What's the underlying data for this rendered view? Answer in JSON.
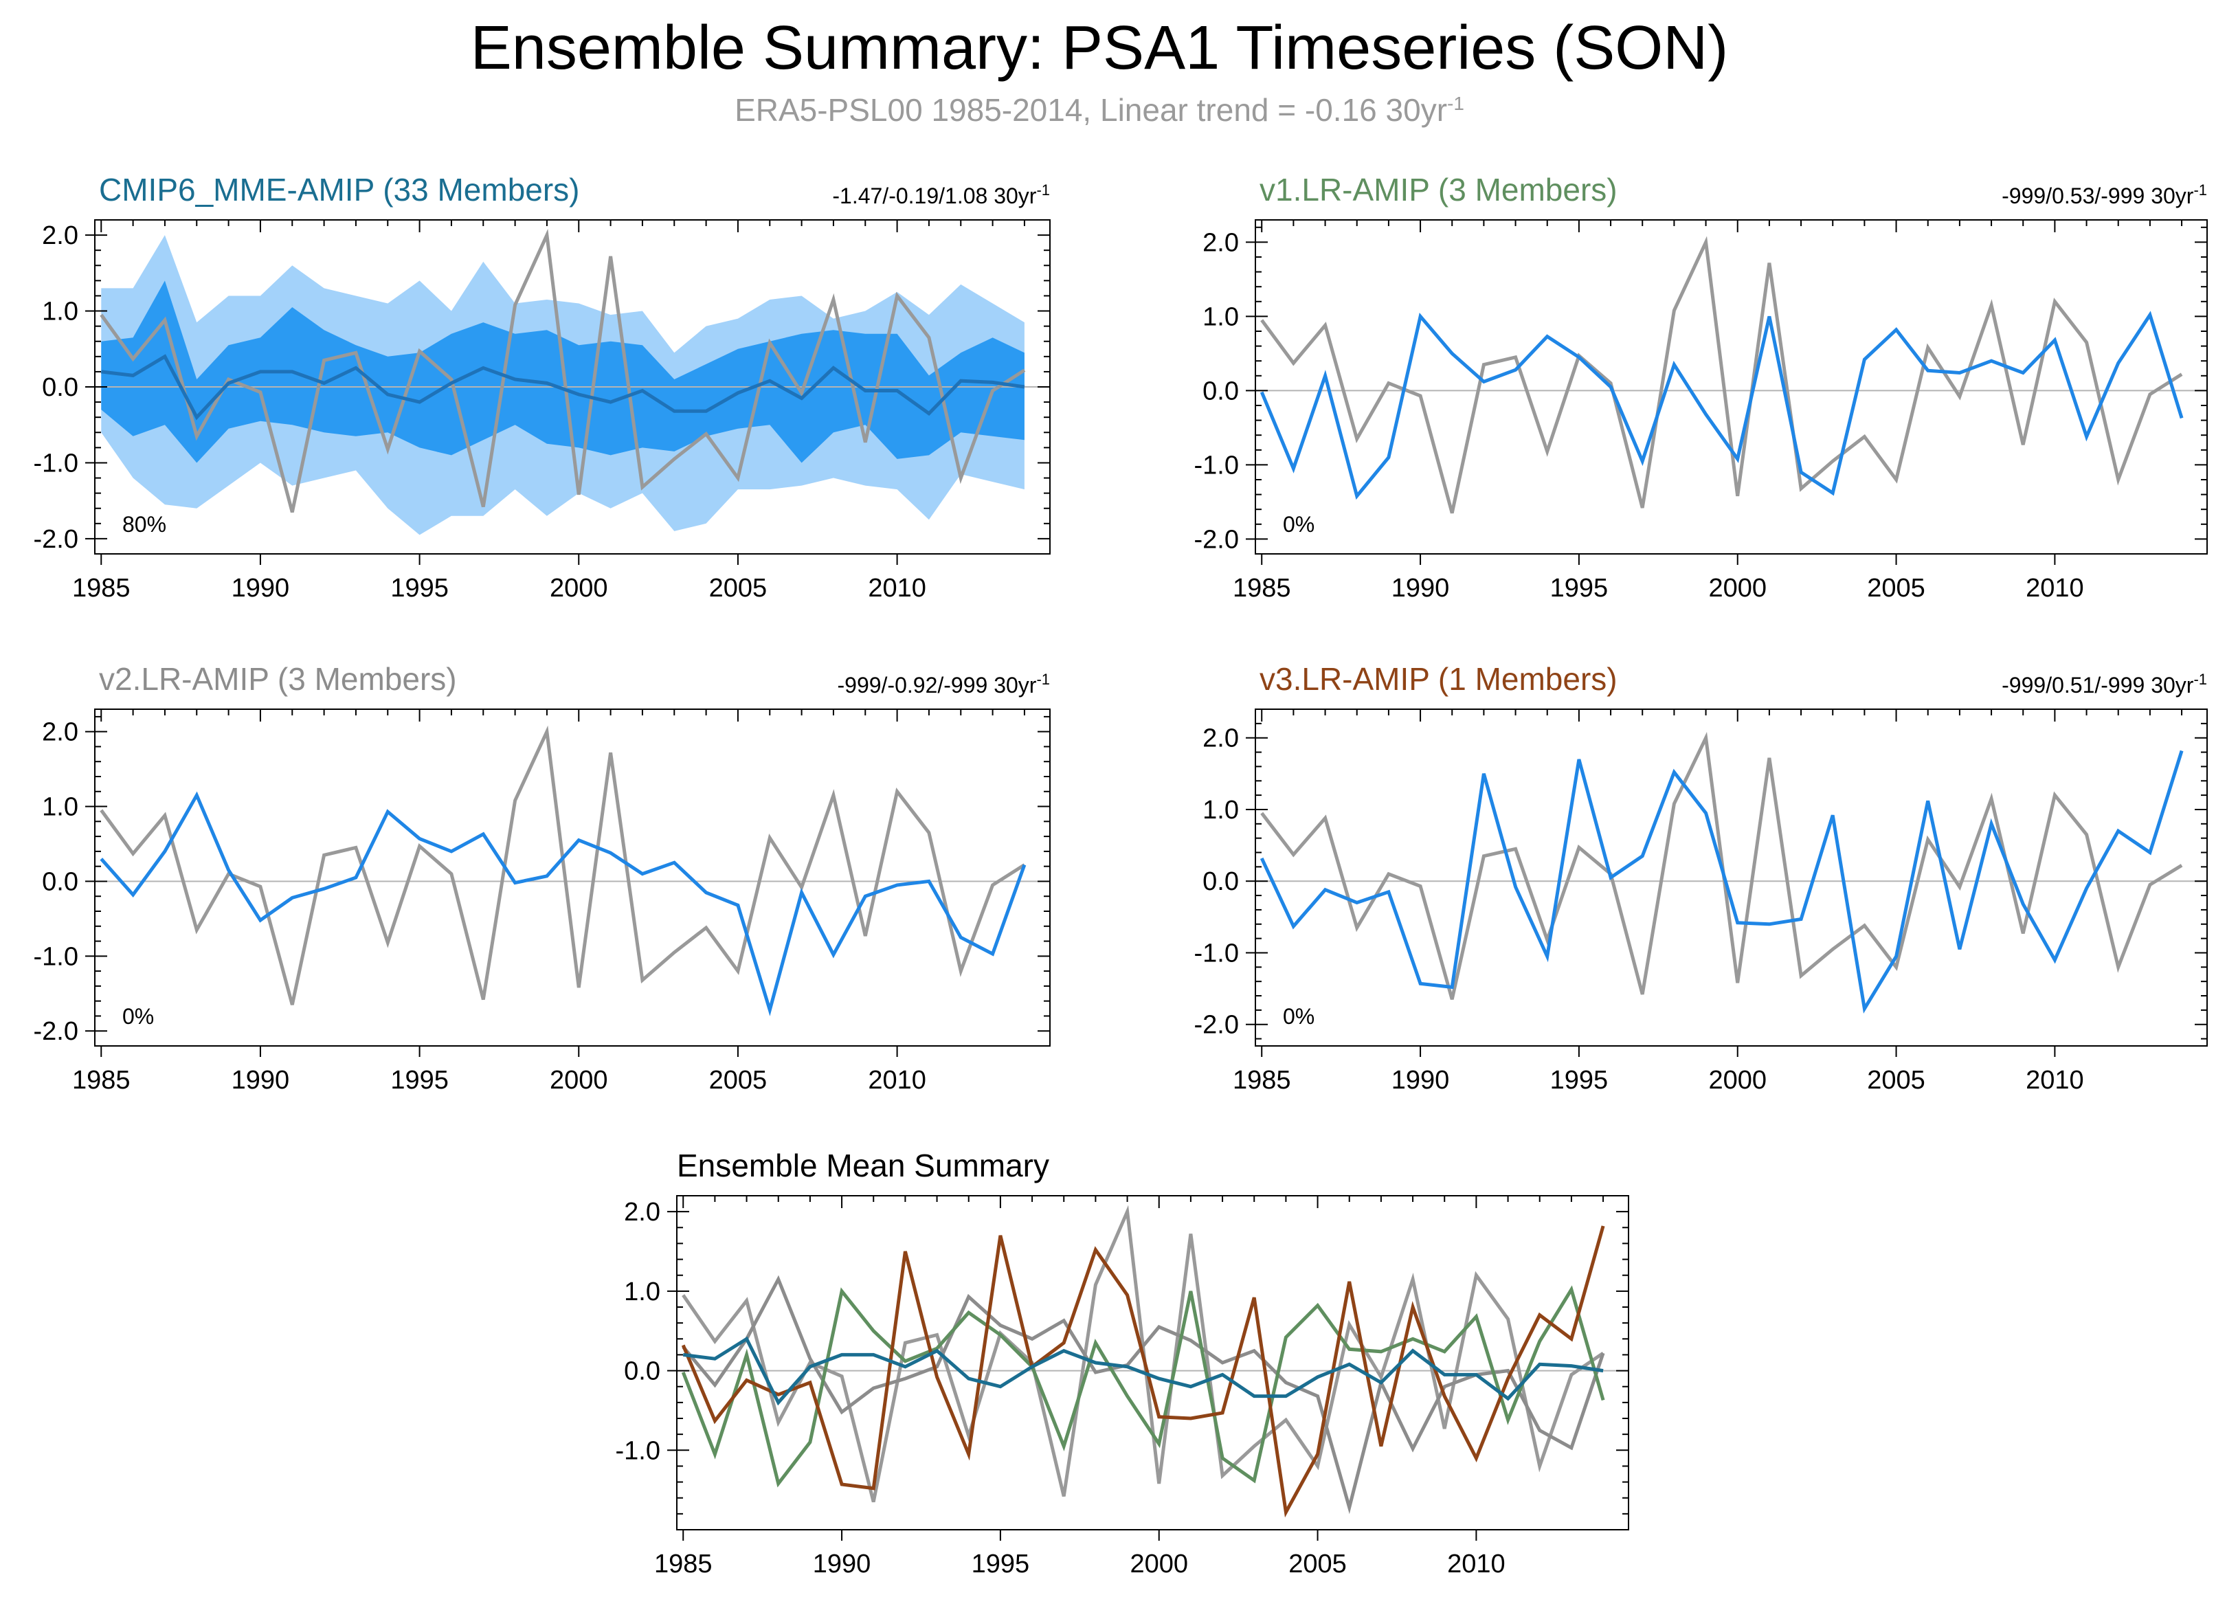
{
  "header": {
    "title": "Ensemble Summary: PSA1 Timeseries (SON)",
    "subtitle": "ERA5-PSL00 1985-2014, Linear trend = -0.16 30yr",
    "subtitle_sup": "-1"
  },
  "colors": {
    "observation": "#999999",
    "mme_mean": "#1e72b8",
    "mme_inner_band": "#2b9af2",
    "mme_outer_band": "#a3d2fa",
    "member_line": "#1f86e6",
    "zero_line": "#b4b4b4",
    "panel_mme": "#1a6e91",
    "panel_v1": "#5f8f5f",
    "panel_v2": "#8c8c8c",
    "panel_v3": "#8f4316"
  },
  "chart_data": [
    {
      "id": "mme",
      "type": "line",
      "title": "CMIP6_MME-AMIP (33 Members)",
      "title_color": "#1a6e91",
      "trend_text": "-1.47/-0.19/1.08 30yr",
      "trend_sup": "-1",
      "percent_label": "80%",
      "xlabel": "",
      "ylabel": "",
      "xlim": [
        1984.8,
        2014.8
      ],
      "ylim": [
        -2.2,
        2.2
      ],
      "xticks": [
        1985,
        1990,
        1995,
        2000,
        2005,
        2010
      ],
      "xtick_labels": [
        "1985",
        "1990",
        "1995",
        "2000",
        "2005",
        "2010"
      ],
      "yticks": [
        -2,
        -1,
        0,
        1,
        2
      ],
      "ytick_labels": [
        "-2.0",
        "-1.0",
        "0.0",
        "1.0",
        "2.0"
      ],
      "x": [
        1985,
        1986,
        1987,
        1988,
        1989,
        1990,
        1991,
        1992,
        1993,
        1994,
        1995,
        1996,
        1997,
        1998,
        1999,
        2000,
        2001,
        2002,
        2003,
        2004,
        2005,
        2006,
        2007,
        2008,
        2009,
        2010,
        2011,
        2012,
        2013,
        2014
      ],
      "bands": [
        {
          "name": "outer range",
          "color": "#a3d2fa",
          "upper": [
            1.3,
            1.3,
            2.0,
            0.85,
            1.2,
            1.2,
            1.6,
            1.3,
            1.2,
            1.1,
            1.4,
            1.0,
            1.65,
            1.1,
            1.15,
            1.1,
            0.95,
            1.0,
            0.45,
            0.8,
            0.9,
            1.15,
            1.2,
            0.9,
            1.0,
            1.25,
            0.95,
            1.35,
            1.1,
            0.85
          ],
          "lower": [
            -0.6,
            -1.2,
            -1.55,
            -1.6,
            -1.3,
            -1.0,
            -1.3,
            -1.2,
            -1.1,
            -1.6,
            -1.95,
            -1.7,
            -1.7,
            -1.35,
            -1.7,
            -1.4,
            -1.6,
            -1.4,
            -1.9,
            -1.8,
            -1.35,
            -1.35,
            -1.3,
            -1.2,
            -1.3,
            -1.35,
            -1.75,
            -1.15,
            -1.25,
            -1.35
          ]
        },
        {
          "name": "inner range",
          "color": "#2b9af2",
          "upper": [
            0.6,
            0.65,
            1.4,
            0.1,
            0.55,
            0.65,
            1.05,
            0.75,
            0.55,
            0.4,
            0.45,
            0.7,
            0.85,
            0.7,
            0.75,
            0.55,
            0.6,
            0.55,
            0.1,
            0.3,
            0.5,
            0.6,
            0.7,
            0.75,
            0.7,
            0.7,
            0.15,
            0.45,
            0.65,
            0.45
          ],
          "lower": [
            -0.3,
            -0.65,
            -0.5,
            -1.0,
            -0.55,
            -0.45,
            -0.5,
            -0.6,
            -0.65,
            -0.6,
            -0.8,
            -0.9,
            -0.7,
            -0.5,
            -0.75,
            -0.8,
            -0.9,
            -0.8,
            -0.85,
            -0.65,
            -0.55,
            -0.5,
            -1.0,
            -0.6,
            -0.5,
            -0.95,
            -0.9,
            -0.6,
            -0.65,
            -0.7
          ]
        }
      ],
      "series": [
        {
          "name": "ERA5-PSL00",
          "color": "#999999",
          "width": 5,
          "values": [
            0.95,
            0.37,
            0.88,
            -0.65,
            0.1,
            -0.07,
            -1.65,
            0.35,
            0.45,
            -0.82,
            0.47,
            0.1,
            -1.58,
            1.08,
            2.0,
            -1.42,
            1.72,
            -1.32,
            -0.95,
            -0.62,
            -1.2,
            0.58,
            -0.08,
            1.15,
            -0.73,
            1.2,
            0.65,
            -1.2,
            -0.05,
            0.22
          ]
        },
        {
          "name": "CMIP6_MME-AMIP ensemble mean",
          "color": "#1e72b8",
          "width": 5,
          "values": [
            0.2,
            0.15,
            0.4,
            -0.4,
            0.05,
            0.2,
            0.2,
            0.05,
            0.25,
            -0.1,
            -0.2,
            0.05,
            0.25,
            0.1,
            0.05,
            -0.1,
            -0.2,
            -0.05,
            -0.32,
            -0.32,
            -0.08,
            0.08,
            -0.15,
            0.25,
            -0.05,
            -0.05,
            -0.35,
            0.08,
            0.06,
            0.0
          ]
        }
      ]
    },
    {
      "id": "v1",
      "type": "line",
      "title": "v1.LR-AMIP (3 Members)",
      "title_color": "#5f8f5f",
      "trend_text": "-999/0.53/-999 30yr",
      "trend_sup": "-1",
      "percent_label": "0%",
      "xlabel": "",
      "ylabel": "",
      "xlim": [
        1984.8,
        2014.8
      ],
      "ylim": [
        -2.2,
        2.3
      ],
      "xticks": [
        1985,
        1990,
        1995,
        2000,
        2005,
        2010
      ],
      "xtick_labels": [
        "1985",
        "1990",
        "1995",
        "2000",
        "2005",
        "2010"
      ],
      "yticks": [
        -2,
        -1,
        0,
        1,
        2
      ],
      "ytick_labels": [
        "-2.0",
        "-1.0",
        "0.0",
        "1.0",
        "2.0"
      ],
      "x": [
        1985,
        1986,
        1987,
        1988,
        1989,
        1990,
        1991,
        1992,
        1993,
        1994,
        1995,
        1996,
        1997,
        1998,
        1999,
        2000,
        2001,
        2002,
        2003,
        2004,
        2005,
        2006,
        2007,
        2008,
        2009,
        2010,
        2011,
        2012,
        2013,
        2014
      ],
      "series": [
        {
          "name": "ERA5-PSL00",
          "color": "#999999",
          "width": 5,
          "values": [
            0.95,
            0.37,
            0.88,
            -0.65,
            0.1,
            -0.07,
            -1.65,
            0.35,
            0.45,
            -0.82,
            0.47,
            0.1,
            -1.58,
            1.08,
            2.0,
            -1.42,
            1.72,
            -1.32,
            -0.95,
            -0.62,
            -1.2,
            0.58,
            -0.08,
            1.15,
            -0.73,
            1.2,
            0.65,
            -1.2,
            -0.05,
            0.22
          ]
        },
        {
          "name": "v1.LR-AMIP ensemble mean",
          "color": "#1f86e6",
          "width": 5,
          "values": [
            -0.02,
            -1.05,
            0.2,
            -1.42,
            -0.9,
            1.0,
            0.5,
            0.12,
            0.28,
            0.73,
            0.45,
            0.05,
            -0.95,
            0.35,
            -0.32,
            -0.92,
            1.0,
            -1.1,
            -1.38,
            0.42,
            0.82,
            0.27,
            0.24,
            0.4,
            0.24,
            0.68,
            -0.62,
            0.37,
            1.02,
            -0.37
          ]
        }
      ]
    },
    {
      "id": "v2",
      "type": "line",
      "title": "v2.LR-AMIP (3 Members)",
      "title_color": "#8c8c8c",
      "trend_text": "-999/-0.92/-999 30yr",
      "trend_sup": "-1",
      "percent_label": "0%",
      "xlabel": "",
      "ylabel": "",
      "xlim": [
        1984.8,
        2014.8
      ],
      "ylim": [
        -2.2,
        2.3
      ],
      "xticks": [
        1985,
        1990,
        1995,
        2000,
        2005,
        2010
      ],
      "xtick_labels": [
        "1985",
        "1990",
        "1995",
        "2000",
        "2005",
        "2010"
      ],
      "yticks": [
        -2,
        -1,
        0,
        1,
        2
      ],
      "ytick_labels": [
        "-2.0",
        "-1.0",
        "0.0",
        "1.0",
        "2.0"
      ],
      "x": [
        1985,
        1986,
        1987,
        1988,
        1989,
        1990,
        1991,
        1992,
        1993,
        1994,
        1995,
        1996,
        1997,
        1998,
        1999,
        2000,
        2001,
        2002,
        2003,
        2004,
        2005,
        2006,
        2007,
        2008,
        2009,
        2010,
        2011,
        2012,
        2013,
        2014
      ],
      "series": [
        {
          "name": "ERA5-PSL00",
          "color": "#999999",
          "width": 5,
          "values": [
            0.95,
            0.37,
            0.88,
            -0.65,
            0.1,
            -0.07,
            -1.65,
            0.35,
            0.45,
            -0.82,
            0.47,
            0.1,
            -1.58,
            1.08,
            2.0,
            -1.42,
            1.72,
            -1.32,
            -0.95,
            -0.62,
            -1.2,
            0.58,
            -0.08,
            1.15,
            -0.73,
            1.2,
            0.65,
            -1.2,
            -0.05,
            0.22
          ]
        },
        {
          "name": "v2.LR-AMIP ensemble mean",
          "color": "#1f86e6",
          "width": 5,
          "values": [
            0.3,
            -0.18,
            0.4,
            1.15,
            0.15,
            -0.52,
            -0.22,
            -0.1,
            0.05,
            0.93,
            0.57,
            0.4,
            0.63,
            -0.02,
            0.07,
            0.55,
            0.38,
            0.1,
            0.25,
            -0.15,
            -0.32,
            -1.72,
            -0.15,
            -0.98,
            -0.2,
            -0.05,
            0.0,
            -0.75,
            -0.97,
            0.22
          ]
        }
      ]
    },
    {
      "id": "v3",
      "type": "line",
      "title": "v3.LR-AMIP (1 Members)",
      "title_color": "#8f4316",
      "trend_text": "-999/0.51/-999 30yr",
      "trend_sup": "-1",
      "percent_label": "0%",
      "xlabel": "",
      "ylabel": "",
      "xlim": [
        1984.8,
        2014.8
      ],
      "ylim": [
        -2.3,
        2.4
      ],
      "xticks": [
        1985,
        1990,
        1995,
        2000,
        2005,
        2010
      ],
      "xtick_labels": [
        "1985",
        "1990",
        "1995",
        "2000",
        "2005",
        "2010"
      ],
      "yticks": [
        -2,
        -1,
        0,
        1,
        2
      ],
      "ytick_labels": [
        "-2.0",
        "-1.0",
        "0.0",
        "1.0",
        "2.0"
      ],
      "x": [
        1985,
        1986,
        1987,
        1988,
        1989,
        1990,
        1991,
        1992,
        1993,
        1994,
        1995,
        1996,
        1997,
        1998,
        1999,
        2000,
        2001,
        2002,
        2003,
        2004,
        2005,
        2006,
        2007,
        2008,
        2009,
        2010,
        2011,
        2012,
        2013,
        2014
      ],
      "series": [
        {
          "name": "ERA5-PSL00",
          "color": "#999999",
          "width": 5,
          "values": [
            0.95,
            0.37,
            0.88,
            -0.65,
            0.1,
            -0.07,
            -1.65,
            0.35,
            0.45,
            -0.82,
            0.47,
            0.1,
            -1.58,
            1.08,
            2.0,
            -1.42,
            1.72,
            -1.32,
            -0.95,
            -0.62,
            -1.2,
            0.58,
            -0.08,
            1.15,
            -0.73,
            1.2,
            0.65,
            -1.2,
            -0.05,
            0.22
          ]
        },
        {
          "name": "v3.LR-AMIP member",
          "color": "#1f86e6",
          "width": 5,
          "values": [
            0.32,
            -0.63,
            -0.12,
            -0.3,
            -0.15,
            -1.43,
            -1.48,
            1.5,
            -0.08,
            -1.05,
            1.7,
            0.05,
            0.35,
            1.52,
            0.95,
            -0.58,
            -0.6,
            -0.53,
            0.92,
            -1.78,
            -1.05,
            1.12,
            -0.95,
            0.8,
            -0.32,
            -1.1,
            -0.1,
            0.7,
            0.4,
            1.82
          ]
        }
      ]
    },
    {
      "id": "mean",
      "type": "line",
      "title": "Ensemble Mean Summary",
      "title_color": "#000000",
      "xlabel": "",
      "ylabel": "",
      "xlim": [
        1984.8,
        2014.8
      ],
      "ylim": [
        -2.0,
        2.2
      ],
      "xticks": [
        1985,
        1990,
        1995,
        2000,
        2005,
        2010
      ],
      "xtick_labels": [
        "1985",
        "1990",
        "1995",
        "2000",
        "2005",
        "2010"
      ],
      "yticks": [
        -1,
        0,
        1,
        2
      ],
      "ytick_labels": [
        "-1.0",
        "0.0",
        "1.0",
        "2.0"
      ],
      "x": [
        1985,
        1986,
        1987,
        1988,
        1989,
        1990,
        1991,
        1992,
        1993,
        1994,
        1995,
        1996,
        1997,
        1998,
        1999,
        2000,
        2001,
        2002,
        2003,
        2004,
        2005,
        2006,
        2007,
        2008,
        2009,
        2010,
        2011,
        2012,
        2013,
        2014
      ],
      "series": [
        {
          "name": "ERA5-PSL00",
          "color": "#999999",
          "width": 5,
          "values": [
            0.95,
            0.37,
            0.88,
            -0.65,
            0.1,
            -0.07,
            -1.65,
            0.35,
            0.45,
            -0.82,
            0.47,
            0.1,
            -1.58,
            1.08,
            2.0,
            -1.42,
            1.72,
            -1.32,
            -0.95,
            -0.62,
            -1.2,
            0.58,
            -0.08,
            1.15,
            -0.73,
            1.2,
            0.65,
            -1.2,
            -0.05,
            0.22
          ]
        },
        {
          "name": "v2.LR-AMIP",
          "color": "#8c8c8c",
          "width": 5,
          "values": [
            0.3,
            -0.18,
            0.4,
            1.15,
            0.15,
            -0.52,
            -0.22,
            -0.1,
            0.05,
            0.93,
            0.57,
            0.4,
            0.63,
            -0.02,
            0.07,
            0.55,
            0.38,
            0.1,
            0.25,
            -0.15,
            -0.32,
            -1.72,
            -0.15,
            -0.98,
            -0.2,
            -0.05,
            0.0,
            -0.75,
            -0.97,
            0.22
          ]
        },
        {
          "name": "v1.LR-AMIP",
          "color": "#5f8f5f",
          "width": 5,
          "values": [
            -0.02,
            -1.05,
            0.2,
            -1.42,
            -0.9,
            1.0,
            0.5,
            0.12,
            0.28,
            0.73,
            0.45,
            0.05,
            -0.95,
            0.35,
            -0.32,
            -0.92,
            1.0,
            -1.1,
            -1.38,
            0.42,
            0.82,
            0.27,
            0.24,
            0.4,
            0.24,
            0.68,
            -0.62,
            0.37,
            1.02,
            -0.37
          ]
        },
        {
          "name": "v3.LR-AMIP",
          "color": "#8f4316",
          "width": 5,
          "values": [
            0.32,
            -0.63,
            -0.12,
            -0.3,
            -0.15,
            -1.43,
            -1.48,
            1.5,
            -0.08,
            -1.05,
            1.7,
            0.05,
            0.35,
            1.52,
            0.95,
            -0.58,
            -0.6,
            -0.53,
            0.92,
            -1.78,
            -1.05,
            1.12,
            -0.95,
            0.8,
            -0.32,
            -1.1,
            -0.1,
            0.7,
            0.4,
            1.82
          ]
        },
        {
          "name": "CMIP6_MME-AMIP",
          "color": "#1a6e91",
          "width": 5,
          "values": [
            0.2,
            0.15,
            0.4,
            -0.4,
            0.05,
            0.2,
            0.2,
            0.05,
            0.25,
            -0.1,
            -0.2,
            0.05,
            0.25,
            0.1,
            0.05,
            -0.1,
            -0.2,
            -0.05,
            -0.32,
            -0.32,
            -0.08,
            0.08,
            -0.15,
            0.25,
            -0.05,
            -0.05,
            -0.35,
            0.08,
            0.06,
            0.0
          ]
        }
      ]
    }
  ]
}
